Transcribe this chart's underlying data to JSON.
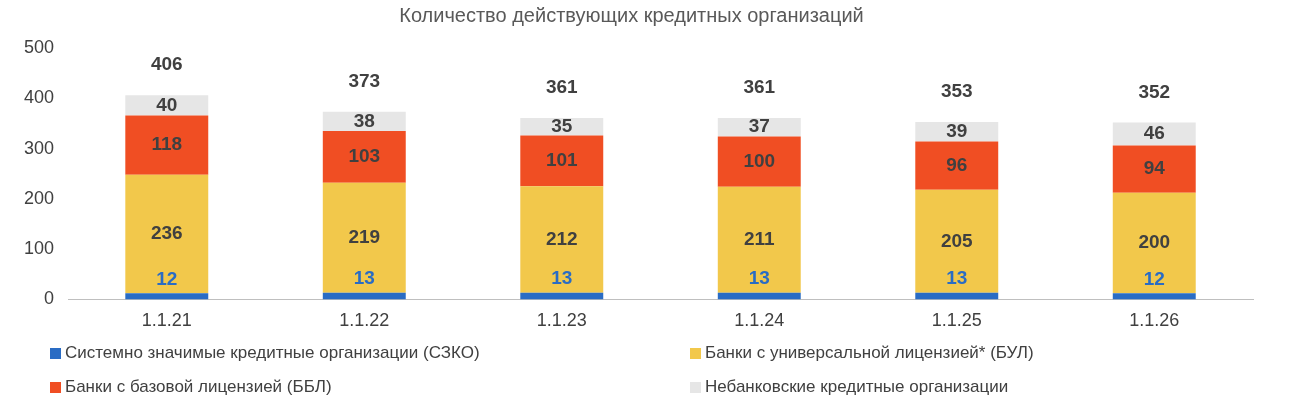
{
  "chart_data": {
    "type": "bar",
    "title": "Количество действующих кредитных организаций",
    "categories": [
      "1.1.21",
      "1.1.22",
      "1.1.23",
      "1.1.24",
      "1.1.25",
      "1.1.26"
    ],
    "stacked": true,
    "ylim": [
      0,
      500
    ],
    "yticks": [
      0,
      100,
      200,
      300,
      400,
      500
    ],
    "grid": false,
    "legend": "bottom",
    "data_labels": true,
    "totals": [
      "406",
      "373",
      "361",
      "361",
      "353",
      "352"
    ],
    "series": [
      {
        "name": "Системно значимые кредитные организации (СЗКО)",
        "color": "#2a6cc4",
        "values": [
          12,
          13,
          13,
          13,
          13,
          12
        ]
      },
      {
        "name": "Банки с универсальной лицензией* (БУЛ)",
        "color": "#f2c84b",
        "values": [
          236,
          219,
          212,
          211,
          205,
          200
        ]
      },
      {
        "name": "Банки с базовой лицензией (ББЛ)",
        "color": "#f04e23",
        "values": [
          118,
          103,
          101,
          100,
          96,
          94
        ]
      },
      {
        "name": "Небанковские кредитные организации",
        "color": "#e6e6e6",
        "values": [
          40,
          38,
          35,
          37,
          39,
          46
        ]
      }
    ]
  }
}
